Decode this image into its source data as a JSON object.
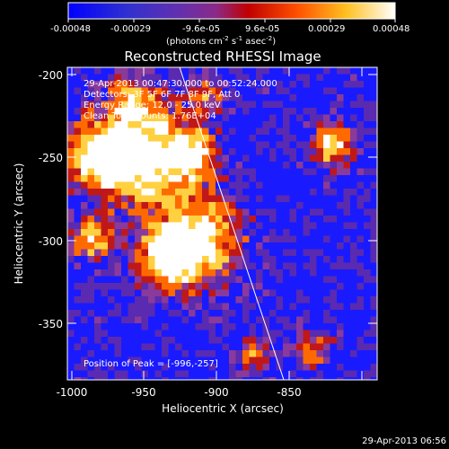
{
  "colorbar": {
    "ticks": [
      "-0.00048",
      "-0.00029",
      "-9.6e-05",
      "9.6e-05",
      "0.00029",
      "0.00048"
    ],
    "units_parts": [
      "(photons cm",
      "-2",
      " s",
      "-1",
      " asec",
      "-2",
      ")"
    ]
  },
  "plot": {
    "title": "Reconstructed RHESSI Image",
    "xlabel": "Heliocentric X (arcsec)",
    "ylabel": "Heliocentric Y (arcsec)",
    "xticks": [
      "-1000",
      "-950",
      "-900",
      "-850"
    ],
    "yticks": [
      "-200",
      "-250",
      "-300",
      "-350"
    ]
  },
  "annotations": {
    "time_range": "29-Apr-2013 00:47:30.000 to 00:52:24.000",
    "detectors": "Detectors: 3F 5F 6F 7F 8F 9F, Att 0",
    "energy": "Energy Range: 12.0 - 25.0 keV",
    "clean": "Clean    Total counts: 1.76E+04",
    "peak": "Position of Peak = [-996,-257]"
  },
  "footer": {
    "timestamp": "29-Apr-2013 06:56"
  },
  "palette": [
    "#1a1aff",
    "#5a2ab0",
    "#8a3a9a",
    "#c01818",
    "#ff6a00",
    "#ffd040",
    "#ffffff"
  ]
}
